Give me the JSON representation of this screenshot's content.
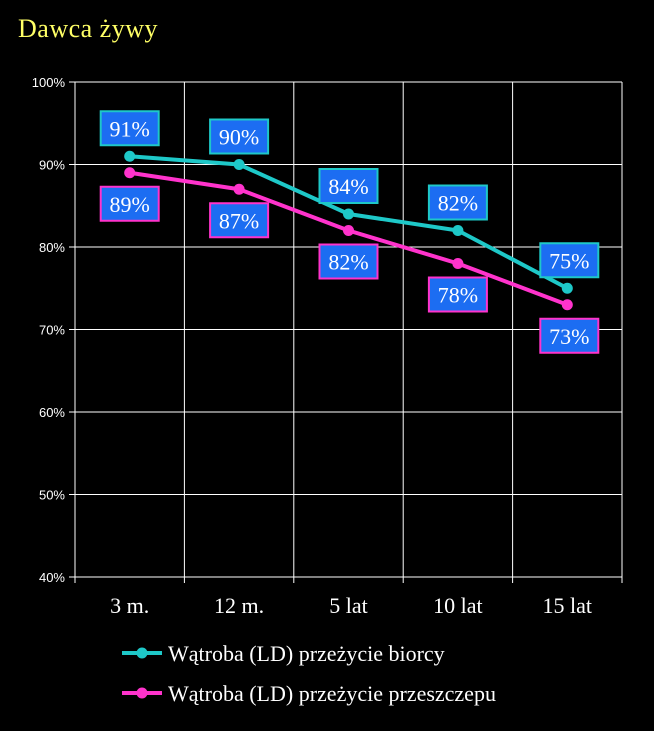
{
  "chart_data": {
    "type": "line",
    "title": "Dawca żywy",
    "categories": [
      "3 m.",
      "12 m.",
      "5 lat",
      "10 lat",
      "15 lat"
    ],
    "ylim": [
      40,
      100
    ],
    "yticks": [
      40,
      50,
      60,
      70,
      80,
      90,
      100
    ],
    "ytick_suffix": "%",
    "grid": true,
    "legend_position": "bottom",
    "series": [
      {
        "name": "Wątroba (LD) przeżycie biorcy",
        "color": "#1ec8c8",
        "label_border": "#1ec8c8",
        "values": [
          91,
          90,
          84,
          82,
          75
        ],
        "labels": [
          "91%",
          "90%",
          "84%",
          "82%",
          "75%"
        ]
      },
      {
        "name": "Wątroba (LD) przeżycie przeszczepu",
        "color": "#ff33cc",
        "label_border": "#ff33cc",
        "values": [
          89,
          87,
          82,
          78,
          73
        ],
        "labels": [
          "89%",
          "87%",
          "82%",
          "78%",
          "73%"
        ]
      }
    ],
    "label_fill": "#1c6df2"
  }
}
